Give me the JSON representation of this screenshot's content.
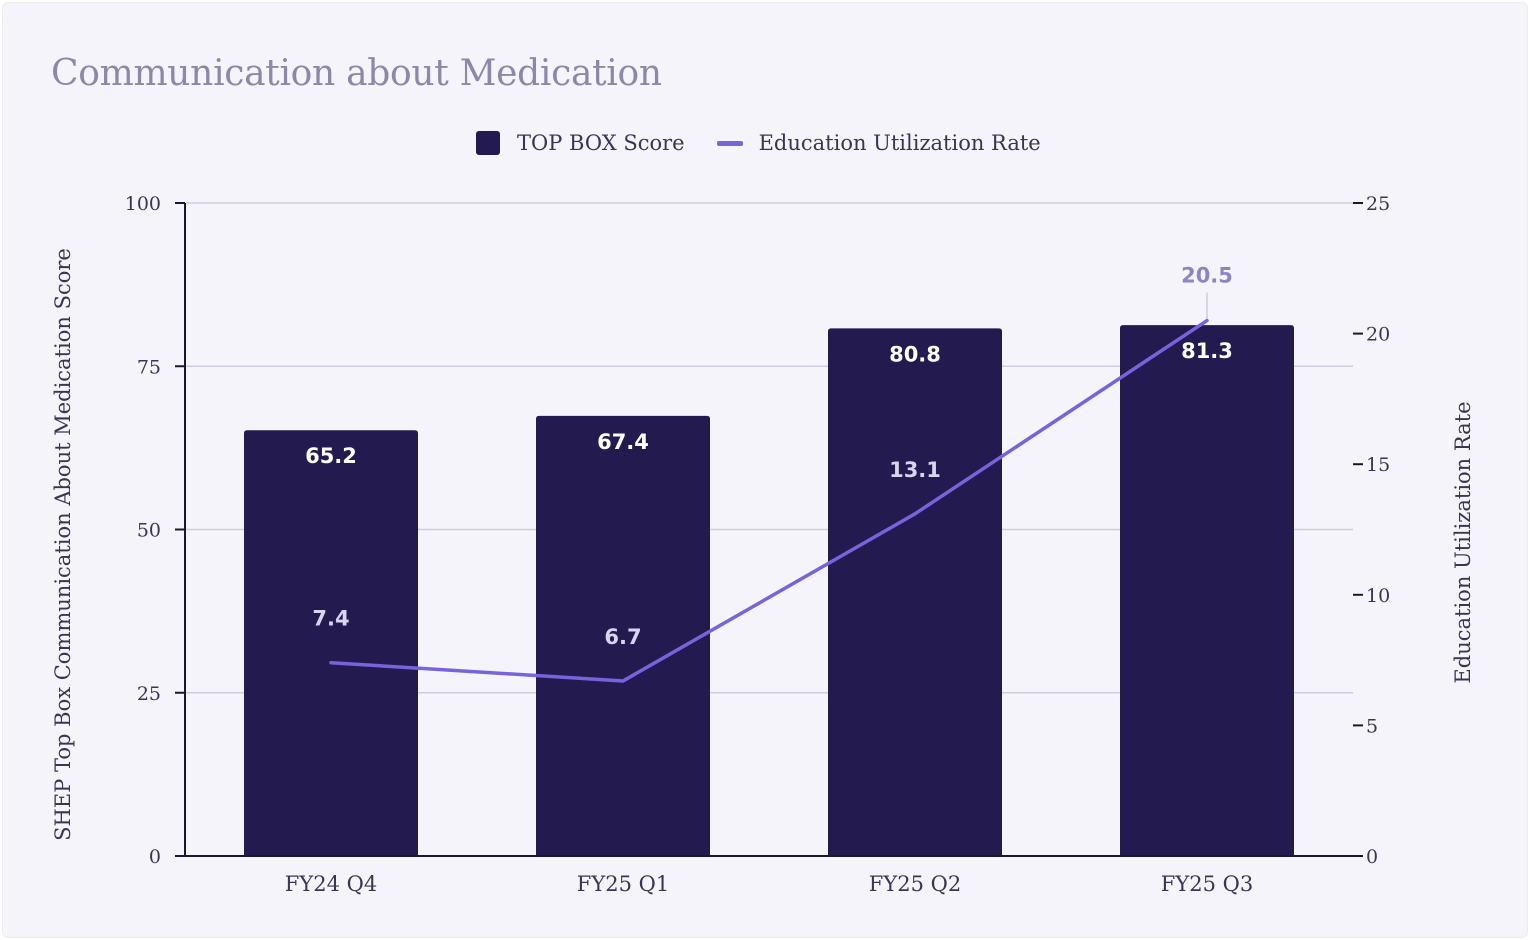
{
  "colors": {
    "bar": "#231a4f",
    "line": "#7a62dc",
    "line_label_outside": "#8e83c9",
    "grid": "#cfcddd",
    "axis": "#1b1733"
  },
  "chart_data": {
    "type": "bar",
    "title": "Communication about Medication",
    "categories": [
      "FY24 Q4",
      "FY25 Q1",
      "FY25 Q2",
      "FY25 Q3"
    ],
    "series": [
      {
        "name": "TOP BOX Score",
        "type": "bar",
        "axis": "left",
        "values": [
          65.2,
          67.4,
          80.8,
          81.3
        ],
        "labels": [
          "65.2",
          "67.4",
          "80.8",
          "81.3"
        ]
      },
      {
        "name": "Education Utilization Rate",
        "type": "line",
        "axis": "right",
        "values": [
          7.4,
          6.7,
          13.1,
          20.5
        ],
        "labels": [
          "7.4",
          "6.7",
          "13.1",
          "20.5"
        ]
      }
    ],
    "ylabel": "SHEP Top Box Communication About Medication Score",
    "ylim": [
      0,
      100
    ],
    "yticks": [
      "0",
      "25",
      "50",
      "75",
      "100"
    ],
    "y2label": "Education Utilization Rate",
    "y2lim": [
      0,
      25
    ],
    "y2ticks": [
      "0",
      "5",
      "10",
      "15",
      "20",
      "25"
    ],
    "grid": true,
    "legend": "top-center"
  }
}
